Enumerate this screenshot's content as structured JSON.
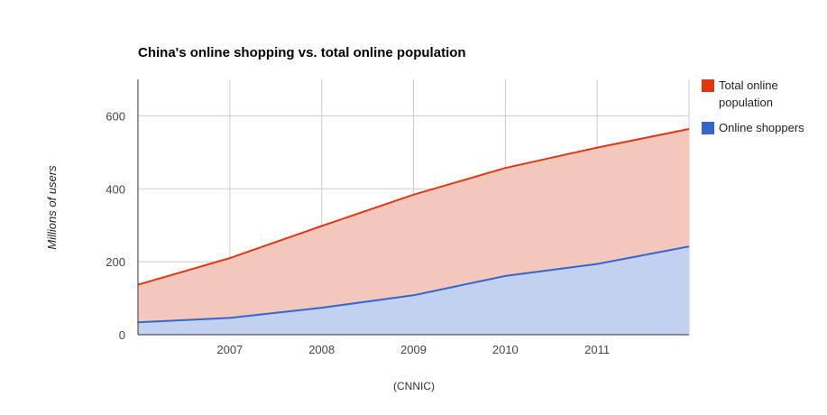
{
  "chart_data": {
    "type": "area",
    "title": "China's online shopping vs. total online population",
    "xlabel": "",
    "ylabel": "Millions of users",
    "caption": "(CNNIC)",
    "x": [
      2006,
      2007,
      2008,
      2009,
      2010,
      2011,
      2012
    ],
    "x_tick_labels": [
      "2007",
      "2008",
      "2009",
      "2010",
      "2011"
    ],
    "x_tick_values": [
      2007,
      2008,
      2009,
      2010,
      2011
    ],
    "xlim": [
      2006,
      2012
    ],
    "ylim": [
      0,
      700
    ],
    "y_ticks": [
      0,
      200,
      400,
      600
    ],
    "grid": true,
    "legend_position": "right",
    "series": [
      {
        "name": "Total online population",
        "legend_lines": [
          "Total online",
          "population"
        ],
        "color": "#dc3912",
        "fill": "#f4c7bd",
        "values": [
          137,
          210,
          298,
          384,
          457,
          513,
          564
        ]
      },
      {
        "name": "Online shoppers",
        "legend_lines": [
          "Online shoppers"
        ],
        "color": "#3366cc",
        "fill": "#c2d1f0",
        "values": [
          34,
          46,
          74,
          108,
          161,
          194,
          242
        ]
      }
    ]
  }
}
